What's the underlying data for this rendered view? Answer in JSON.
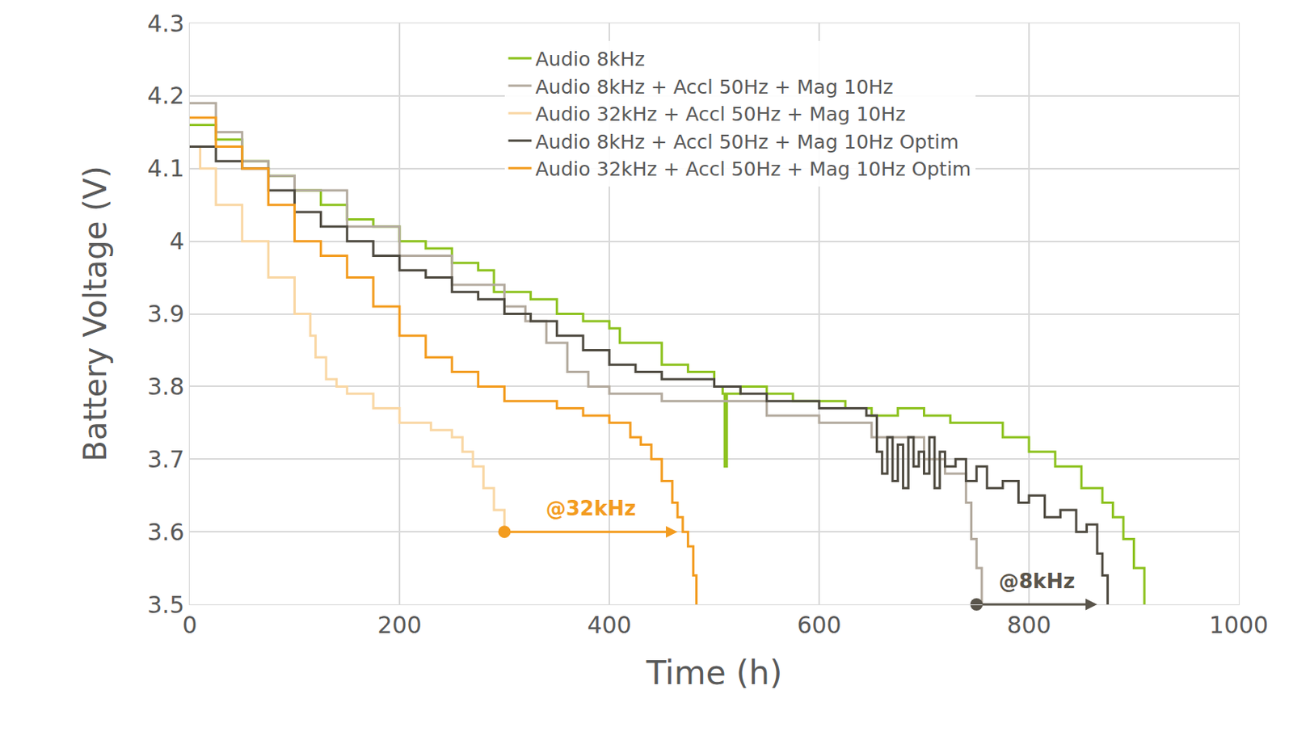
{
  "chart_data": {
    "type": "line",
    "x_label": "Time (h)",
    "y_label": "Battery Voltage (V)",
    "xlim": [
      0,
      1000
    ],
    "xticks": [
      0,
      200,
      400,
      600,
      800,
      1000
    ],
    "ylim": [
      3.5,
      4.3
    ],
    "yticks": [
      3.5,
      3.6,
      3.7,
      3.8,
      3.9,
      4,
      4.1,
      4.2,
      4.3
    ],
    "grid": true,
    "legend": "top",
    "series": [
      {
        "name": "Audio 8kHz",
        "color": "#8dc21f",
        "x": [
          0,
          25,
          50,
          75,
          100,
          125,
          150,
          175,
          200,
          225,
          250,
          275,
          290,
          300,
          325,
          350,
          375,
          400,
          410,
          425,
          450,
          475,
          500,
          508,
          510,
          512,
          525,
          550,
          575,
          600,
          625,
          650,
          675,
          700,
          725,
          750,
          775,
          800,
          825,
          850,
          870,
          880,
          890,
          900,
          910
        ],
        "values": [
          4.16,
          4.14,
          4.11,
          4.09,
          4.07,
          4.05,
          4.03,
          4.02,
          4.0,
          3.99,
          3.97,
          3.96,
          3.93,
          3.93,
          3.92,
          3.9,
          3.89,
          3.88,
          3.86,
          3.86,
          3.83,
          3.82,
          3.8,
          3.79,
          3.69,
          3.79,
          3.8,
          3.79,
          3.78,
          3.78,
          3.77,
          3.76,
          3.77,
          3.76,
          3.75,
          3.75,
          3.73,
          3.71,
          3.69,
          3.66,
          3.64,
          3.62,
          3.59,
          3.55,
          3.5
        ]
      },
      {
        "name": "Audio 8kHz + Accl 50Hz + Mag 10Hz",
        "color": "#b3aa9e",
        "x": [
          0,
          25,
          50,
          75,
          100,
          150,
          200,
          250,
          300,
          320,
          340,
          360,
          380,
          400,
          450,
          500,
          550,
          600,
          650,
          700,
          720,
          740,
          745,
          750,
          755
        ],
        "values": [
          4.19,
          4.15,
          4.11,
          4.09,
          4.07,
          4.02,
          3.98,
          3.94,
          3.91,
          3.89,
          3.86,
          3.82,
          3.8,
          3.79,
          3.78,
          3.78,
          3.76,
          3.75,
          3.73,
          3.7,
          3.68,
          3.64,
          3.59,
          3.55,
          3.5
        ]
      },
      {
        "name": "Audio 32kHz + Accl 50Hz + Mag 10Hz",
        "color": "#f9d7a4",
        "x": [
          0,
          10,
          25,
          50,
          75,
          100,
          115,
          120,
          130,
          140,
          150,
          175,
          200,
          230,
          250,
          260,
          270,
          280,
          290,
          300
        ],
        "values": [
          4.13,
          4.1,
          4.05,
          4.0,
          3.95,
          3.9,
          3.87,
          3.84,
          3.81,
          3.8,
          3.79,
          3.77,
          3.75,
          3.74,
          3.73,
          3.71,
          3.69,
          3.66,
          3.63,
          3.6
        ]
      },
      {
        "name": "Audio 8kHz + Accl 50Hz + Mag 10Hz Optim",
        "color": "#4e4a40",
        "x": [
          0,
          25,
          50,
          75,
          100,
          125,
          150,
          175,
          200,
          225,
          250,
          275,
          300,
          325,
          350,
          375,
          400,
          425,
          450,
          475,
          500,
          525,
          550,
          575,
          600,
          625,
          645,
          655,
          660,
          665,
          670,
          675,
          680,
          685,
          690,
          695,
          700,
          705,
          710,
          715,
          720,
          730,
          740,
          750,
          760,
          775,
          790,
          800,
          815,
          830,
          845,
          855,
          865,
          870,
          875
        ],
        "values": [
          4.13,
          4.11,
          4.1,
          4.07,
          4.04,
          4.02,
          4.0,
          3.98,
          3.96,
          3.95,
          3.93,
          3.92,
          3.9,
          3.89,
          3.87,
          3.85,
          3.83,
          3.82,
          3.81,
          3.81,
          3.8,
          3.79,
          3.78,
          3.78,
          3.77,
          3.77,
          3.76,
          3.71,
          3.68,
          3.73,
          3.67,
          3.72,
          3.66,
          3.73,
          3.69,
          3.71,
          3.68,
          3.73,
          3.66,
          3.71,
          3.69,
          3.7,
          3.67,
          3.69,
          3.66,
          3.67,
          3.64,
          3.65,
          3.62,
          3.63,
          3.6,
          3.61,
          3.57,
          3.54,
          3.5
        ]
      },
      {
        "name": "Audio 32kHz + Accl 50Hz + Mag 10Hz Optim",
        "color": "#f39c1f",
        "x": [
          0,
          25,
          50,
          75,
          100,
          125,
          150,
          175,
          200,
          225,
          250,
          275,
          300,
          325,
          350,
          375,
          400,
          420,
          430,
          440,
          450,
          460,
          465,
          470,
          475,
          480,
          483
        ],
        "values": [
          4.17,
          4.13,
          4.1,
          4.05,
          4.0,
          3.98,
          3.95,
          3.91,
          3.87,
          3.84,
          3.82,
          3.8,
          3.78,
          3.78,
          3.77,
          3.76,
          3.75,
          3.73,
          3.72,
          3.7,
          3.67,
          3.64,
          3.62,
          3.6,
          3.58,
          3.54,
          3.5
        ]
      }
    ],
    "annotations": [
      {
        "text": "@32kHz",
        "color": "#f39c1f",
        "from": [
          300,
          3.6
        ],
        "to": [
          465,
          3.6
        ]
      },
      {
        "text": "@8kHz",
        "color": "#5a554b",
        "from": [
          750,
          3.5
        ],
        "to": [
          865,
          3.5
        ]
      }
    ]
  }
}
